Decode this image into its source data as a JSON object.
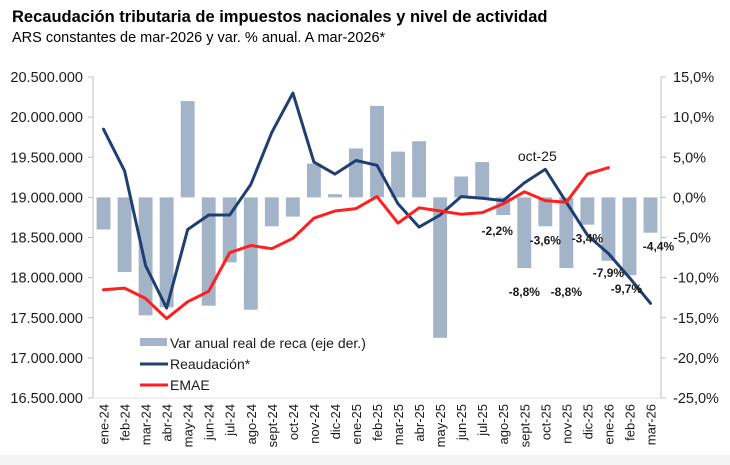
{
  "header": {
    "title": "Recaudación tributaria de impuestos nacionales y nivel de actividad",
    "subtitle": "ARS constantes de mar-2026 y var. % anual. A mar-2026*"
  },
  "chart_data": {
    "type": "bar+line",
    "title": "Recaudación tributaria de impuestos nacionales y nivel de actividad",
    "subtitle": "ARS constantes de mar-2026 y var. % anual. A mar-2026*",
    "categories": [
      "ene-24",
      "feb-24",
      "mar-24",
      "abr-24",
      "may-24",
      "jun-24",
      "jul-24",
      "ago-24",
      "sept-24",
      "oct-24",
      "nov-24",
      "dic-24",
      "ene-25",
      "feb-25",
      "mar-25",
      "abr-25",
      "may-25",
      "jun-25",
      "jul-25",
      "ago-25",
      "sept-25",
      "oct-25",
      "nov-25",
      "dic-25",
      "ene-26",
      "feb-26",
      "mar-26"
    ],
    "left_axis": {
      "ylim": [
        16500000,
        20500000
      ],
      "ticks": [
        16500000,
        17000000,
        17500000,
        18000000,
        18500000,
        19000000,
        19500000,
        20000000,
        20500000
      ],
      "tick_labels": [
        "16.500.000",
        "17.000.000",
        "17.500.000",
        "18.000.000",
        "18.500.000",
        "19.000.000",
        "19.500.000",
        "20.000.000",
        "20.500.000"
      ]
    },
    "right_axis": {
      "ylim": [
        -25,
        15
      ],
      "ticks": [
        -25,
        -20,
        -15,
        -10,
        -5,
        0,
        5,
        10,
        15
      ],
      "tick_labels": [
        "-25,0%",
        "-20,0%",
        "-15,0%",
        "-10,0%",
        "-5,0%",
        "0,0%",
        "5,0%",
        "10,0%",
        "15,0%"
      ]
    },
    "series": [
      {
        "name": "Var anual real de reca (eje der.)",
        "type": "bar",
        "axis": "right",
        "color": "#a3b4c9",
        "values": [
          -4.0,
          -9.3,
          -14.7,
          -13.7,
          12.0,
          -13.5,
          -8.1,
          -14.0,
          -3.6,
          -2.4,
          4.2,
          0.4,
          6.1,
          11.4,
          5.7,
          7.0,
          -17.5,
          2.6,
          4.4,
          -2.2,
          -8.8,
          -3.6,
          -8.8,
          -3.4,
          -7.9,
          -9.7,
          -4.4
        ]
      },
      {
        "name": "Reaudación*",
        "type": "line",
        "axis": "left",
        "color": "#1f3f73",
        "values": [
          19850000,
          19330000,
          18150000,
          17620000,
          18600000,
          18780000,
          18780000,
          19160000,
          19810000,
          20300000,
          19440000,
          19290000,
          19460000,
          19400000,
          18920000,
          18630000,
          18780000,
          19010000,
          18990000,
          18960000,
          19180000,
          19350000,
          18940000,
          18530000,
          18300000,
          18000000,
          17680000
        ]
      },
      {
        "name": "EMAE",
        "type": "line",
        "axis": "left",
        "color": "#ff1f1f",
        "values": [
          17850000,
          17870000,
          17740000,
          17490000,
          17700000,
          17830000,
          18310000,
          18400000,
          18360000,
          18490000,
          18740000,
          18830000,
          18860000,
          19010000,
          18680000,
          18870000,
          18830000,
          18790000,
          18810000,
          18920000,
          19070000,
          18960000,
          18940000,
          19290000,
          19370000,
          null,
          null
        ]
      }
    ],
    "data_labels": [
      {
        "category": "ago-25",
        "text": "-2,2%",
        "value": -2.2
      },
      {
        "category": "sept-25",
        "text": "-8,8%",
        "value": -8.8
      },
      {
        "category": "oct-25",
        "text": "-3,6%",
        "value": -3.6
      },
      {
        "category": "nov-25",
        "text": "-8,8%",
        "value": -8.8
      },
      {
        "category": "dic-25",
        "text": "-3,4%",
        "value": -3.4
      },
      {
        "category": "ene-26",
        "text": "-7,9%",
        "value": -7.9
      },
      {
        "category": "feb-26",
        "text": "-9,7%",
        "value": -9.7
      },
      {
        "category": "mar-26",
        "text": "-4,4%",
        "value": -4.4
      }
    ],
    "annotations": [
      {
        "text": "oct-25",
        "category": "oct-25"
      }
    ],
    "legend": {
      "placement": "bottom-left-inside",
      "entries": [
        "Var anual real de reca (eje der.)",
        "Reaudación*",
        "EMAE"
      ]
    },
    "grid": false
  }
}
